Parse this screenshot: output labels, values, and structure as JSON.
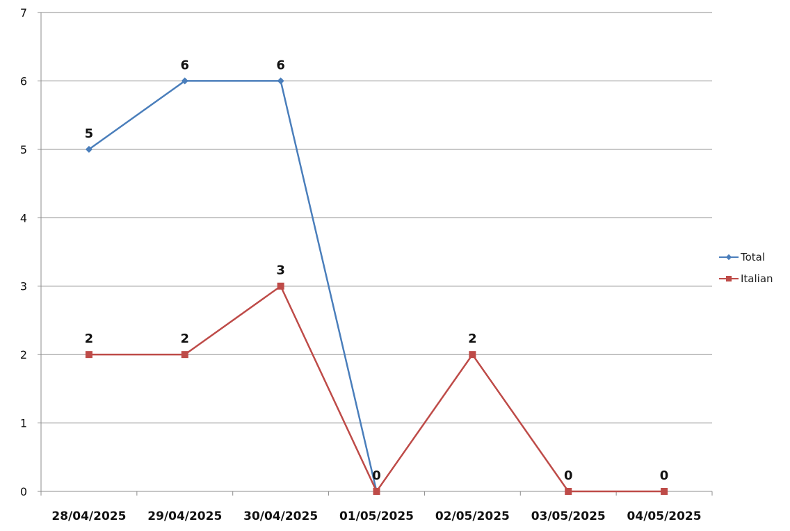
{
  "chart_data": {
    "type": "line",
    "categories": [
      "28/04/2025",
      "29/04/2025",
      "30/04/2025",
      "01/05/2025",
      "02/05/2025",
      "03/05/2025",
      "04/05/2025"
    ],
    "ylim": [
      0,
      7
    ],
    "yticks": [
      "0",
      "1",
      "2",
      "3",
      "4",
      "5",
      "6",
      "7"
    ],
    "grid": true,
    "legend_position": "right",
    "series": [
      {
        "name": "Total",
        "color": "#4a7ebb",
        "marker": "diamond",
        "values": [
          5,
          6,
          6,
          0,
          null,
          null,
          null
        ],
        "labels": [
          "5",
          "6",
          "6",
          "",
          "",
          "",
          ""
        ]
      },
      {
        "name": "Italian",
        "color": "#be4b48",
        "marker": "square",
        "values": [
          2,
          2,
          3,
          0,
          2,
          0,
          0
        ],
        "labels": [
          "2",
          "2",
          "3",
          "0",
          "2",
          "0",
          "0"
        ]
      }
    ]
  }
}
